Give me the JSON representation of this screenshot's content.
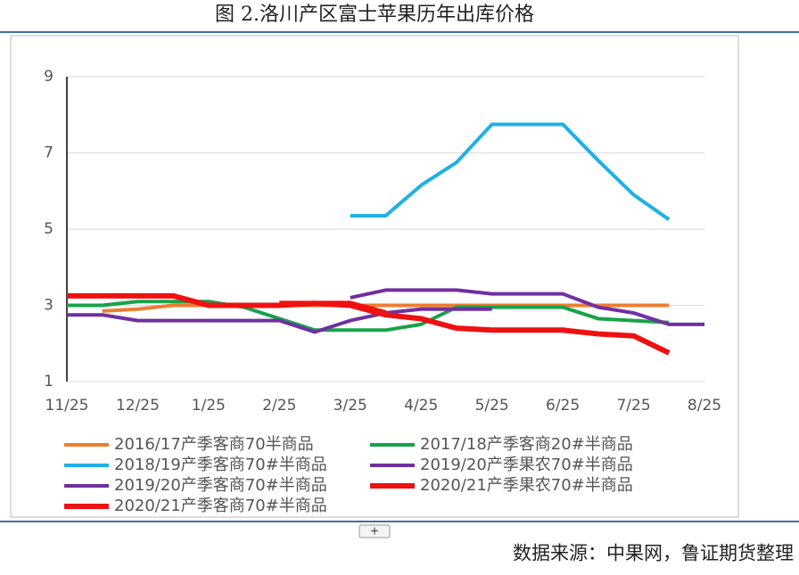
{
  "chart_data": {
    "type": "line",
    "title": "图 2.洛川产区富士苹果历年出库价格",
    "source": "数据来源：中果网，鲁证期货整理",
    "button": "+",
    "categories": [
      "11/25",
      null,
      "12/25",
      null,
      "1/25",
      null,
      "2/25",
      null,
      "3/25",
      null,
      "4/25",
      null,
      "5/25",
      null,
      "6/25",
      null,
      "7/25",
      null,
      "8/25"
    ],
    "ylim": [
      1,
      9
    ],
    "yticks": [
      1,
      3,
      5,
      7,
      9
    ],
    "grid": true,
    "series": [
      {
        "name": "2016/17产季客商70半商品",
        "color": "#ed7d31",
        "values": [
          null,
          2.85,
          2.9,
          3.0,
          3.0,
          3.0,
          3.0,
          3.0,
          3.0,
          3.0,
          3.0,
          3.0,
          3.0,
          3.0,
          3.0,
          3.0,
          3.0,
          3.0,
          null
        ]
      },
      {
        "name": "2017/18产季客商20#半商品",
        "color": "#18a34a",
        "values": [
          3.0,
          3.0,
          3.1,
          3.1,
          3.1,
          2.95,
          2.65,
          2.35,
          2.35,
          2.35,
          2.5,
          2.95,
          2.95,
          2.95,
          2.95,
          2.65,
          2.6,
          2.55,
          null
        ]
      },
      {
        "name": "2018/19产季客商70#半商品",
        "color": "#1fb0e6",
        "values": [
          null,
          null,
          null,
          null,
          null,
          null,
          null,
          null,
          5.35,
          5.35,
          6.15,
          6.75,
          7.75,
          7.75,
          7.75,
          6.8,
          5.9,
          5.25,
          null
        ]
      },
      {
        "name": "2019/20产季果农70#半商品",
        "color": "#7030a0",
        "values": [
          null,
          null,
          null,
          null,
          null,
          null,
          null,
          null,
          3.2,
          3.4,
          3.4,
          3.4,
          3.3,
          3.3,
          3.3,
          2.95,
          2.8,
          2.5,
          2.5
        ]
      },
      {
        "name": "2019/20产季客商70#半商品",
        "color": "#7030a0",
        "values": [
          2.75,
          2.75,
          2.6,
          2.6,
          2.6,
          2.6,
          2.6,
          2.3,
          2.6,
          2.8,
          2.9,
          2.9,
          2.9,
          null,
          null,
          null,
          null,
          null,
          null
        ]
      },
      {
        "name": "2020/21产季果农70#半商品",
        "color": "#ee1111",
        "values": [
          null,
          null,
          null,
          null,
          null,
          null,
          3.05,
          3.05,
          3.05,
          2.8,
          null,
          null,
          null,
          null,
          null,
          null,
          null,
          null,
          null
        ]
      },
      {
        "name": "2020/21产季客商70#半商品",
        "color": "#ee1111",
        "values": [
          3.25,
          3.25,
          3.25,
          3.25,
          3.0,
          3.0,
          3.0,
          3.05,
          3.0,
          2.75,
          2.65,
          2.4,
          2.35,
          2.35,
          2.35,
          2.25,
          2.2,
          1.75,
          null
        ]
      }
    ]
  }
}
